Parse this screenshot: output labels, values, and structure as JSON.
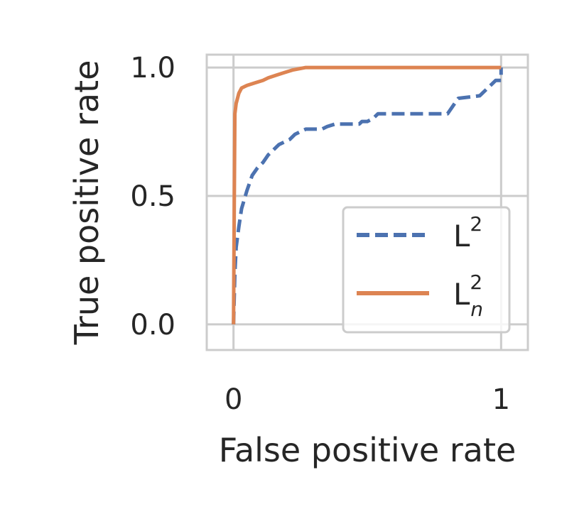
{
  "chart_data": {
    "type": "line",
    "title": "",
    "xlabel": "False positive rate",
    "ylabel": "True positive rate",
    "xlim": [
      -0.1,
      1.1
    ],
    "ylim": [
      -0.1,
      1.05
    ],
    "x_ticks": [
      0,
      1
    ],
    "x_tick_labels": [
      "0",
      "1"
    ],
    "y_ticks": [
      0.0,
      0.5,
      1.0
    ],
    "y_tick_labels": [
      "0.0",
      "0.5",
      "1.0"
    ],
    "grid": true,
    "legend_position": "lower-right",
    "colors": {
      "series_L2": "#4c72b0",
      "series_Ln2": "#dd8452",
      "grid": "#cccccc",
      "text": "#262626"
    },
    "series": [
      {
        "name": "L2",
        "legend_base": "L",
        "legend_sup": "2",
        "legend_sub": "",
        "style": "dashed",
        "points": [
          [
            0.0,
            0.0
          ],
          [
            0.005,
            0.2
          ],
          [
            0.01,
            0.3
          ],
          [
            0.02,
            0.38
          ],
          [
            0.03,
            0.45
          ],
          [
            0.05,
            0.52
          ],
          [
            0.07,
            0.58
          ],
          [
            0.09,
            0.61
          ],
          [
            0.11,
            0.63
          ],
          [
            0.13,
            0.66
          ],
          [
            0.15,
            0.68
          ],
          [
            0.17,
            0.7
          ],
          [
            0.19,
            0.71
          ],
          [
            0.21,
            0.72
          ],
          [
            0.23,
            0.74
          ],
          [
            0.27,
            0.76
          ],
          [
            0.33,
            0.76
          ],
          [
            0.35,
            0.77
          ],
          [
            0.38,
            0.78
          ],
          [
            0.47,
            0.78
          ],
          [
            0.48,
            0.79
          ],
          [
            0.5,
            0.79
          ],
          [
            0.52,
            0.8
          ],
          [
            0.53,
            0.81
          ],
          [
            0.54,
            0.82
          ],
          [
            0.8,
            0.82
          ],
          [
            0.82,
            0.85
          ],
          [
            0.84,
            0.88
          ],
          [
            0.92,
            0.89
          ],
          [
            0.96,
            0.93
          ],
          [
            0.98,
            0.95
          ],
          [
            1.0,
            0.95
          ],
          [
            1.0,
            1.0
          ]
        ]
      },
      {
        "name": "Ln2",
        "legend_base": "L",
        "legend_sup": "2",
        "legend_sub": "n",
        "style": "solid",
        "points": [
          [
            0.0,
            0.0
          ],
          [
            0.003,
            0.5
          ],
          [
            0.005,
            0.82
          ],
          [
            0.01,
            0.86
          ],
          [
            0.02,
            0.9
          ],
          [
            0.03,
            0.92
          ],
          [
            0.05,
            0.93
          ],
          [
            0.08,
            0.94
          ],
          [
            0.11,
            0.95
          ],
          [
            0.13,
            0.96
          ],
          [
            0.16,
            0.97
          ],
          [
            0.19,
            0.98
          ],
          [
            0.22,
            0.99
          ],
          [
            0.27,
            1.0
          ],
          [
            1.0,
            1.0
          ]
        ]
      }
    ]
  }
}
